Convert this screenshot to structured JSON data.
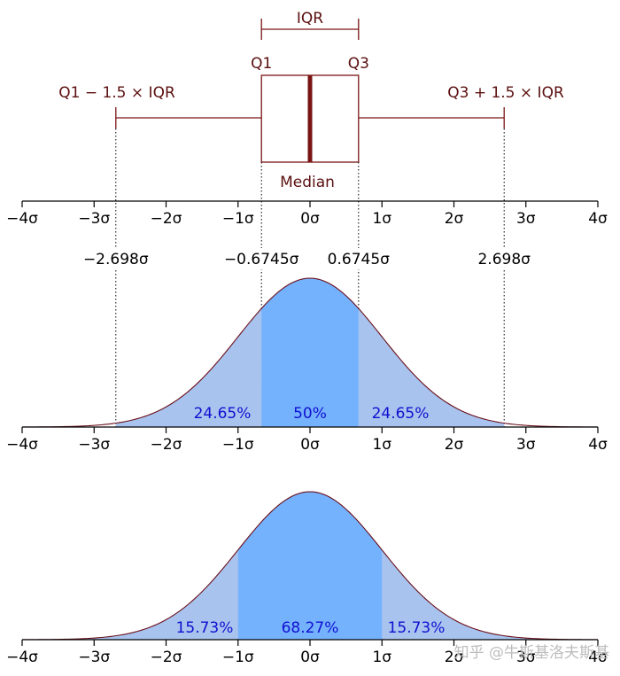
{
  "colors": {
    "box": "#7a1414",
    "box_text": "#5b0f0f",
    "outer_fill": "#a8c4ee",
    "inner_fill": "#75b2fd",
    "curve": "#6a0f1a",
    "percent_text": "#1010d0"
  },
  "tick_labels": [
    "−4σ",
    "−3σ",
    "−2σ",
    "−1σ",
    "0σ",
    "1σ",
    "2σ",
    "3σ",
    "4σ"
  ],
  "boxplot": {
    "iqr_label": "IQR",
    "q1_label": "Q1",
    "q3_label": "Q3",
    "median_label": "Median",
    "lower_whisker_label": "Q1 − 1.5 × IQR",
    "upper_whisker_label": "Q3 + 1.5 × IQR",
    "q1": -0.6745,
    "q3": 0.6745,
    "median": 0,
    "lower_whisker": -2.698,
    "upper_whisker": 2.698
  },
  "quantile_labels": [
    "−2.698σ",
    "−0.6745σ",
    "0.6745σ",
    "2.698σ"
  ],
  "chart_data": [
    {
      "type": "area",
      "x_range": [
        -4,
        4
      ],
      "inner_region": [
        -0.6745,
        0.6745
      ],
      "outer_region": [
        -2.698,
        2.698
      ],
      "percent_labels": [
        "24.65%",
        "50%",
        "24.65%"
      ]
    },
    {
      "type": "area",
      "x_range": [
        -4,
        4
      ],
      "inner_region": [
        -1,
        1
      ],
      "outer_region": [
        -4,
        4
      ],
      "percent_labels": [
        "15.73%",
        "68.27%",
        "15.73%"
      ]
    }
  ],
  "watermark": "知乎 @牛斯基洛夫斯基"
}
